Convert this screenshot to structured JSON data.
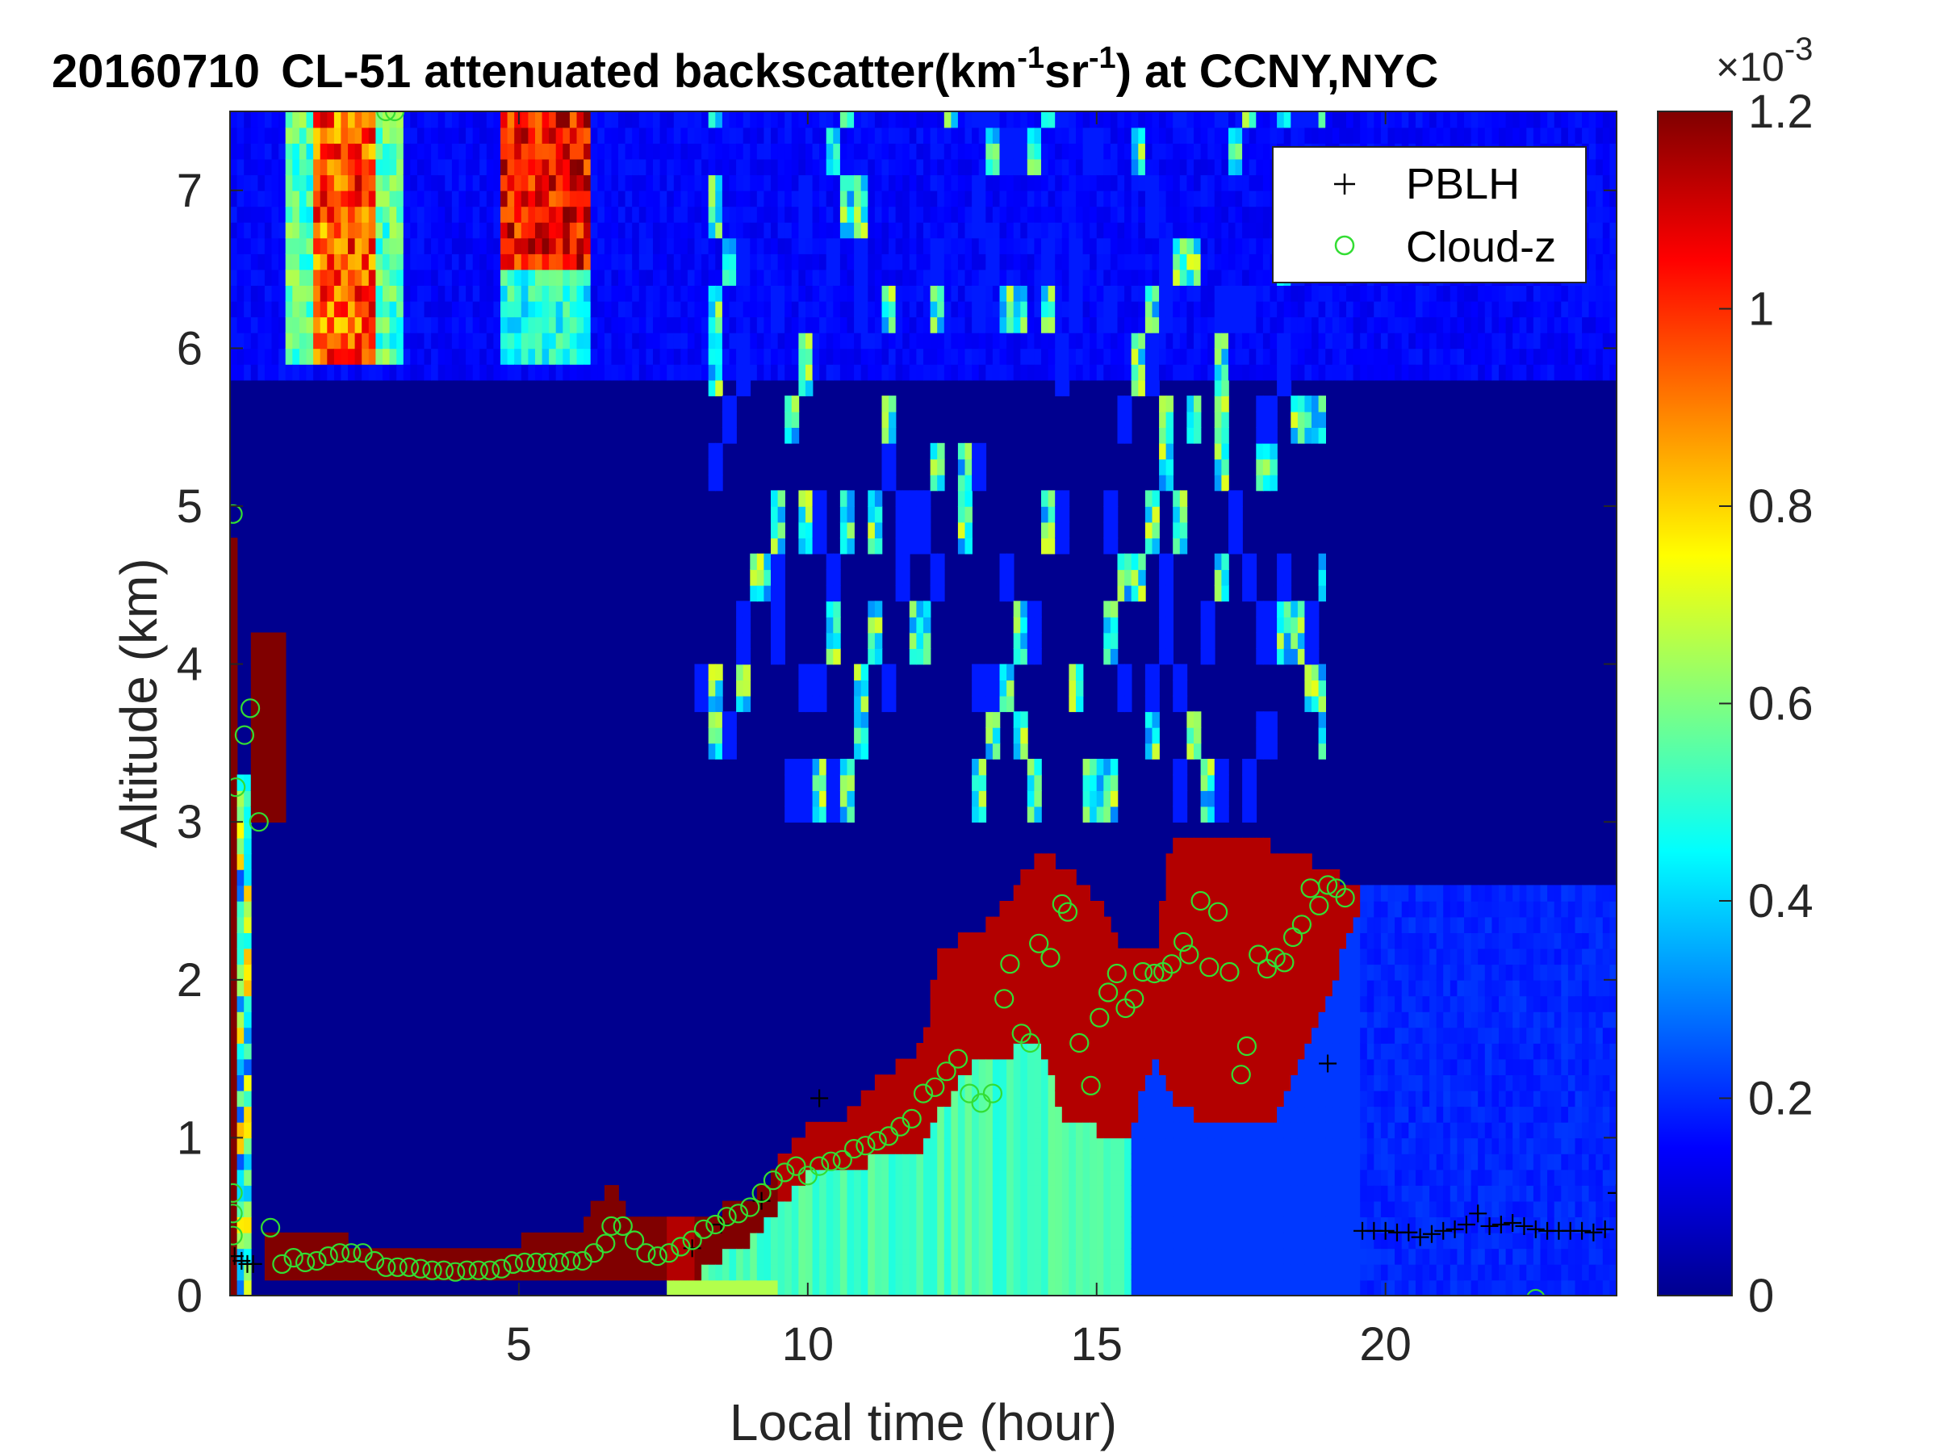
{
  "chart_data": {
    "type": "heatmap",
    "title": {
      "date": "20160710",
      "main": "CL-51 attenuated backscatter(km",
      "sup1": "-1",
      "mid": "sr",
      "sup2": "-1",
      "tail": ") at CCNY,NYC"
    },
    "xlabel": "Local time (hour)",
    "ylabel": "Altitude (km)",
    "xlim": [
      0,
      24
    ],
    "ylim": [
      0,
      7.5
    ],
    "xticks": [
      "5",
      "10",
      "15",
      "20"
    ],
    "yticks": [
      "0",
      "1",
      "2",
      "3",
      "4",
      "5",
      "6",
      "7"
    ],
    "colormap": "jet",
    "colorbar": {
      "range": [
        0,
        0.0012
      ],
      "ticks": [
        "0",
        "0.2",
        "0.4",
        "0.6",
        "0.8",
        "1",
        "1.2"
      ],
      "exponent_base": "×10",
      "exponent": "-3"
    },
    "legend": {
      "position": "top-right",
      "entries": [
        {
          "name": "PBLH",
          "marker": "+",
          "color": "#000000"
        },
        {
          "name": "Cloud-z",
          "marker": "o",
          "color": "#33dd33"
        }
      ]
    },
    "series": [
      {
        "name": "PBLH",
        "points": [
          [
            0.08,
            0.25
          ],
          [
            0.2,
            0.22
          ],
          [
            0.3,
            0.2
          ],
          [
            0.4,
            0.2
          ],
          [
            8.0,
            0.3
          ],
          [
            8.5,
            0.45
          ],
          [
            9.2,
            0.6
          ],
          [
            10.2,
            1.25
          ],
          [
            19.0,
            1.47
          ],
          [
            19.6,
            0.41
          ],
          [
            19.8,
            0.41
          ],
          [
            20.0,
            0.41
          ],
          [
            20.2,
            0.4
          ],
          [
            20.4,
            0.4
          ],
          [
            20.6,
            0.37
          ],
          [
            20.8,
            0.39
          ],
          [
            21.0,
            0.41
          ],
          [
            21.2,
            0.42
          ],
          [
            21.4,
            0.45
          ],
          [
            21.6,
            0.52
          ],
          [
            21.8,
            0.44
          ],
          [
            22.0,
            0.45
          ],
          [
            22.2,
            0.46
          ],
          [
            22.4,
            0.44
          ],
          [
            22.6,
            0.42
          ],
          [
            22.8,
            0.41
          ],
          [
            23.0,
            0.41
          ],
          [
            23.2,
            0.41
          ],
          [
            23.4,
            0.41
          ],
          [
            23.6,
            0.4
          ],
          [
            23.8,
            0.42
          ],
          [
            24.0,
            0.65
          ]
        ]
      },
      {
        "name": "Cloud-z",
        "points": [
          [
            0.05,
            4.95
          ],
          [
            0.05,
            0.65
          ],
          [
            0.05,
            0.52
          ],
          [
            0.05,
            0.38
          ],
          [
            0.1,
            3.22
          ],
          [
            0.25,
            3.55
          ],
          [
            0.35,
            3.72
          ],
          [
            0.5,
            3.0
          ],
          [
            0.7,
            0.43
          ],
          [
            0.9,
            0.2
          ],
          [
            1.1,
            0.24
          ],
          [
            1.3,
            0.21
          ],
          [
            1.5,
            0.22
          ],
          [
            1.7,
            0.25
          ],
          [
            1.9,
            0.27
          ],
          [
            2.1,
            0.27
          ],
          [
            2.3,
            0.27
          ],
          [
            2.5,
            0.22
          ],
          [
            2.7,
            0.18
          ],
          [
            2.7,
            7.5
          ],
          [
            2.85,
            7.5
          ],
          [
            2.9,
            0.18
          ],
          [
            3.1,
            0.18
          ],
          [
            3.3,
            0.17
          ],
          [
            3.5,
            0.16
          ],
          [
            3.7,
            0.16
          ],
          [
            3.9,
            0.15
          ],
          [
            4.1,
            0.16
          ],
          [
            4.3,
            0.16
          ],
          [
            4.5,
            0.16
          ],
          [
            4.7,
            0.17
          ],
          [
            4.9,
            0.2
          ],
          [
            5.1,
            0.21
          ],
          [
            5.3,
            0.21
          ],
          [
            5.5,
            0.21
          ],
          [
            5.7,
            0.21
          ],
          [
            5.9,
            0.22
          ],
          [
            6.1,
            0.22
          ],
          [
            6.3,
            0.27
          ],
          [
            6.5,
            0.33
          ],
          [
            6.6,
            0.44
          ],
          [
            6.8,
            0.44
          ],
          [
            7.0,
            0.35
          ],
          [
            7.2,
            0.27
          ],
          [
            7.4,
            0.25
          ],
          [
            7.6,
            0.27
          ],
          [
            7.8,
            0.31
          ],
          [
            8.0,
            0.35
          ],
          [
            8.2,
            0.42
          ],
          [
            8.4,
            0.45
          ],
          [
            8.6,
            0.5
          ],
          [
            8.8,
            0.52
          ],
          [
            9.0,
            0.56
          ],
          [
            9.2,
            0.65
          ],
          [
            9.4,
            0.73
          ],
          [
            9.6,
            0.78
          ],
          [
            9.8,
            0.82
          ],
          [
            10.0,
            0.76
          ],
          [
            10.2,
            0.82
          ],
          [
            10.4,
            0.85
          ],
          [
            10.6,
            0.86
          ],
          [
            10.8,
            0.93
          ],
          [
            11.0,
            0.95
          ],
          [
            11.2,
            0.98
          ],
          [
            11.4,
            1.01
          ],
          [
            11.6,
            1.07
          ],
          [
            11.8,
            1.12
          ],
          [
            12.0,
            1.28
          ],
          [
            12.2,
            1.32
          ],
          [
            12.4,
            1.42
          ],
          [
            12.6,
            1.5
          ],
          [
            12.8,
            1.28
          ],
          [
            13.0,
            1.22
          ],
          [
            13.2,
            1.28
          ],
          [
            13.4,
            1.88
          ],
          [
            13.5,
            2.1
          ],
          [
            13.7,
            1.66
          ],
          [
            13.85,
            1.6
          ],
          [
            14.0,
            2.23
          ],
          [
            14.2,
            2.14
          ],
          [
            14.4,
            2.48
          ],
          [
            14.5,
            2.43
          ],
          [
            14.7,
            1.6
          ],
          [
            14.9,
            1.33
          ],
          [
            15.05,
            1.76
          ],
          [
            15.2,
            1.92
          ],
          [
            15.35,
            2.04
          ],
          [
            15.5,
            1.82
          ],
          [
            15.65,
            1.88
          ],
          [
            15.8,
            2.05
          ],
          [
            16.0,
            2.04
          ],
          [
            16.15,
            2.05
          ],
          [
            16.3,
            2.1
          ],
          [
            16.5,
            2.24
          ],
          [
            16.6,
            2.16
          ],
          [
            16.8,
            2.5
          ],
          [
            16.95,
            2.08
          ],
          [
            17.1,
            2.43
          ],
          [
            17.3,
            2.05
          ],
          [
            17.5,
            1.4
          ],
          [
            17.6,
            1.58
          ],
          [
            17.8,
            2.16
          ],
          [
            17.95,
            2.07
          ],
          [
            18.1,
            2.14
          ],
          [
            18.25,
            2.11
          ],
          [
            18.4,
            2.27
          ],
          [
            18.55,
            2.35
          ],
          [
            18.7,
            2.58
          ],
          [
            18.85,
            2.47
          ],
          [
            19.0,
            2.6
          ],
          [
            19.15,
            2.58
          ],
          [
            19.3,
            2.52
          ],
          [
            22.6,
            -0.02
          ]
        ]
      }
    ]
  }
}
